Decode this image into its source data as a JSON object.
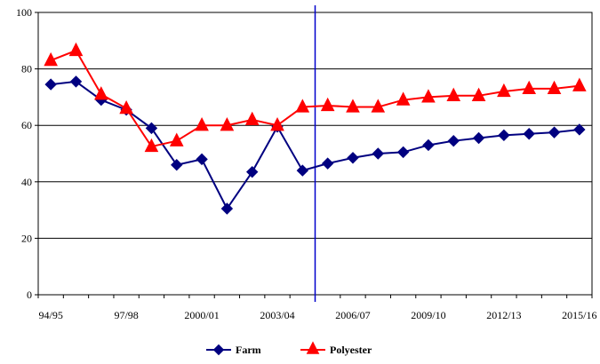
{
  "chart_data": {
    "type": "line",
    "title": "",
    "xlabel": "",
    "ylabel": "",
    "ylim": [
      0,
      100
    ],
    "yticks": [
      0,
      20,
      40,
      60,
      80,
      100
    ],
    "grid": "horizontal",
    "legend_position": "bottom",
    "categories": [
      "94/95",
      "95/96",
      "96/97",
      "97/98",
      "98/99",
      "99/00",
      "2000/01",
      "2001/02",
      "2002/03",
      "2003/04",
      "2004/05",
      "2005/06",
      "2006/07",
      "2007/08",
      "2008/09",
      "2009/10",
      "2010/11",
      "2011/12",
      "2012/13",
      "2013/14",
      "2014/15",
      "2015/16"
    ],
    "category_labels": [
      "94/95",
      "",
      "",
      "97/98",
      "",
      "",
      "2000/01",
      "",
      "",
      "2003/04",
      "",
      "",
      "2006/07",
      "",
      "",
      "2009/10",
      "",
      "",
      "2012/13",
      "",
      "",
      "2015/16"
    ],
    "vertical_marker_after_category": "2004/05",
    "marker_line_color": "#0000CC",
    "series": [
      {
        "name": "Farm",
        "color": "#000080",
        "marker": "diamond",
        "values": [
          74.5,
          75.5,
          69,
          65.5,
          59,
          46,
          48,
          30.5,
          43.5,
          59.5,
          44,
          46.5,
          48.5,
          50,
          50.5,
          53,
          54.5,
          55.5,
          56.5,
          57,
          57.5,
          58.5
        ]
      },
      {
        "name": "Polyester",
        "color": "#FF0000",
        "marker": "triangle",
        "values": [
          83,
          86.5,
          71,
          66,
          52.5,
          54.5,
          60,
          60,
          62,
          60,
          66.5,
          67,
          66.5,
          66.5,
          69,
          70,
          70.5,
          70.5,
          72,
          73,
          73,
          74
        ]
      }
    ]
  }
}
